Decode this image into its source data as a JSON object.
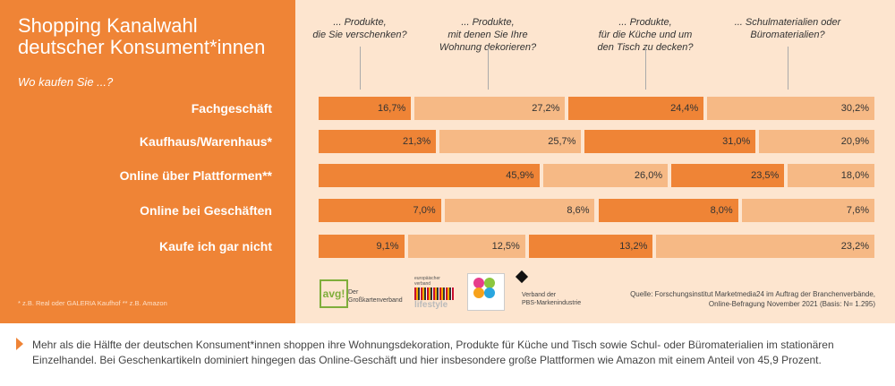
{
  "title": "Shopping Kanalwahl deutscher Konsument*innen",
  "subtitle": "Wo kaufen Sie ...?",
  "footnote": "* z.B. Real oder GALERIA Kaufhof ** z.B. Amazon",
  "colors": {
    "dark": "#ef8436",
    "light": "#f6b985",
    "panel": "#ef8436",
    "background": "#fde5cf"
  },
  "chart_data": {
    "type": "bar",
    "stacked": true,
    "orientation": "horizontal",
    "categories": [
      "Fachgeschäft",
      "Kaufhaus/Warenhaus*",
      "Online über Plattformen**",
      "Online bei Geschäften",
      "Kaufe ich gar nicht"
    ],
    "series": [
      {
        "name": "... Produkte, die Sie verschenken?",
        "values": [
          16.7,
          21.3,
          45.9,
          7.0,
          9.1
        ],
        "labels": [
          "16,7%",
          "21,3%",
          "45,9%",
          "7,0%",
          "9,1%"
        ]
      },
      {
        "name": "... Produkte, mit denen Sie Ihre Wohnung dekorieren?",
        "values": [
          27.2,
          25.7,
          26.0,
          8.6,
          12.5
        ],
        "labels": [
          "27,2%",
          "25,7%",
          "26,0%",
          "8,6%",
          "12,5%"
        ]
      },
      {
        "name": "... Produkte, für die Küche und um den Tisch zu decken?",
        "values": [
          24.4,
          31.0,
          23.5,
          8.0,
          13.2
        ],
        "labels": [
          "24,4%",
          "31,0%",
          "23,5%",
          "8,0%",
          "13,2%"
        ]
      },
      {
        "name": "... Schulmaterialien oder Büromaterialien?",
        "values": [
          30.2,
          20.9,
          18.0,
          7.6,
          23.2
        ],
        "labels": [
          "30,2%",
          "20,9%",
          "18,0%",
          "7,6%",
          "23,2%"
        ]
      }
    ],
    "headers": [
      [
        "... Produkte,",
        "die Sie verschenken?"
      ],
      [
        "... Produkte,",
        "mit denen Sie Ihre",
        "Wohnung dekorieren?"
      ],
      [
        "... Produkte,",
        "für die Küche und um",
        "den Tisch zu decken?"
      ],
      [
        "... Schulmaterialien oder",
        "Büromaterialien?"
      ]
    ]
  },
  "logos": {
    "avg": "avg!",
    "avg_text": [
      "Der",
      "Großkartenverband"
    ],
    "lifestyle_top": "europäischer verband",
    "lifestyle": "lifestyle",
    "pbs": [
      "Verband der",
      "PBS-Markenindustrie"
    ]
  },
  "source": [
    "Quelle: Forschungsinstitut Marketmedia24 im Auftrag der Branchenverbände,",
    "Online-Befragung November 2021 (Basis: N= 1.295)"
  ],
  "summary": "Mehr als die Hälfte der deutschen Konsument*innen shoppen ihre Wohnungsdekoration, Produkte für Küche und Tisch sowie Schul- oder Büromaterialien im stationären Einzelhandel. Bei Geschenkartikeln dominiert hingegen das Online-Geschäft und hier insbesondere große Plattformen wie Amazon mit einem Anteil von 45,9 Prozent."
}
